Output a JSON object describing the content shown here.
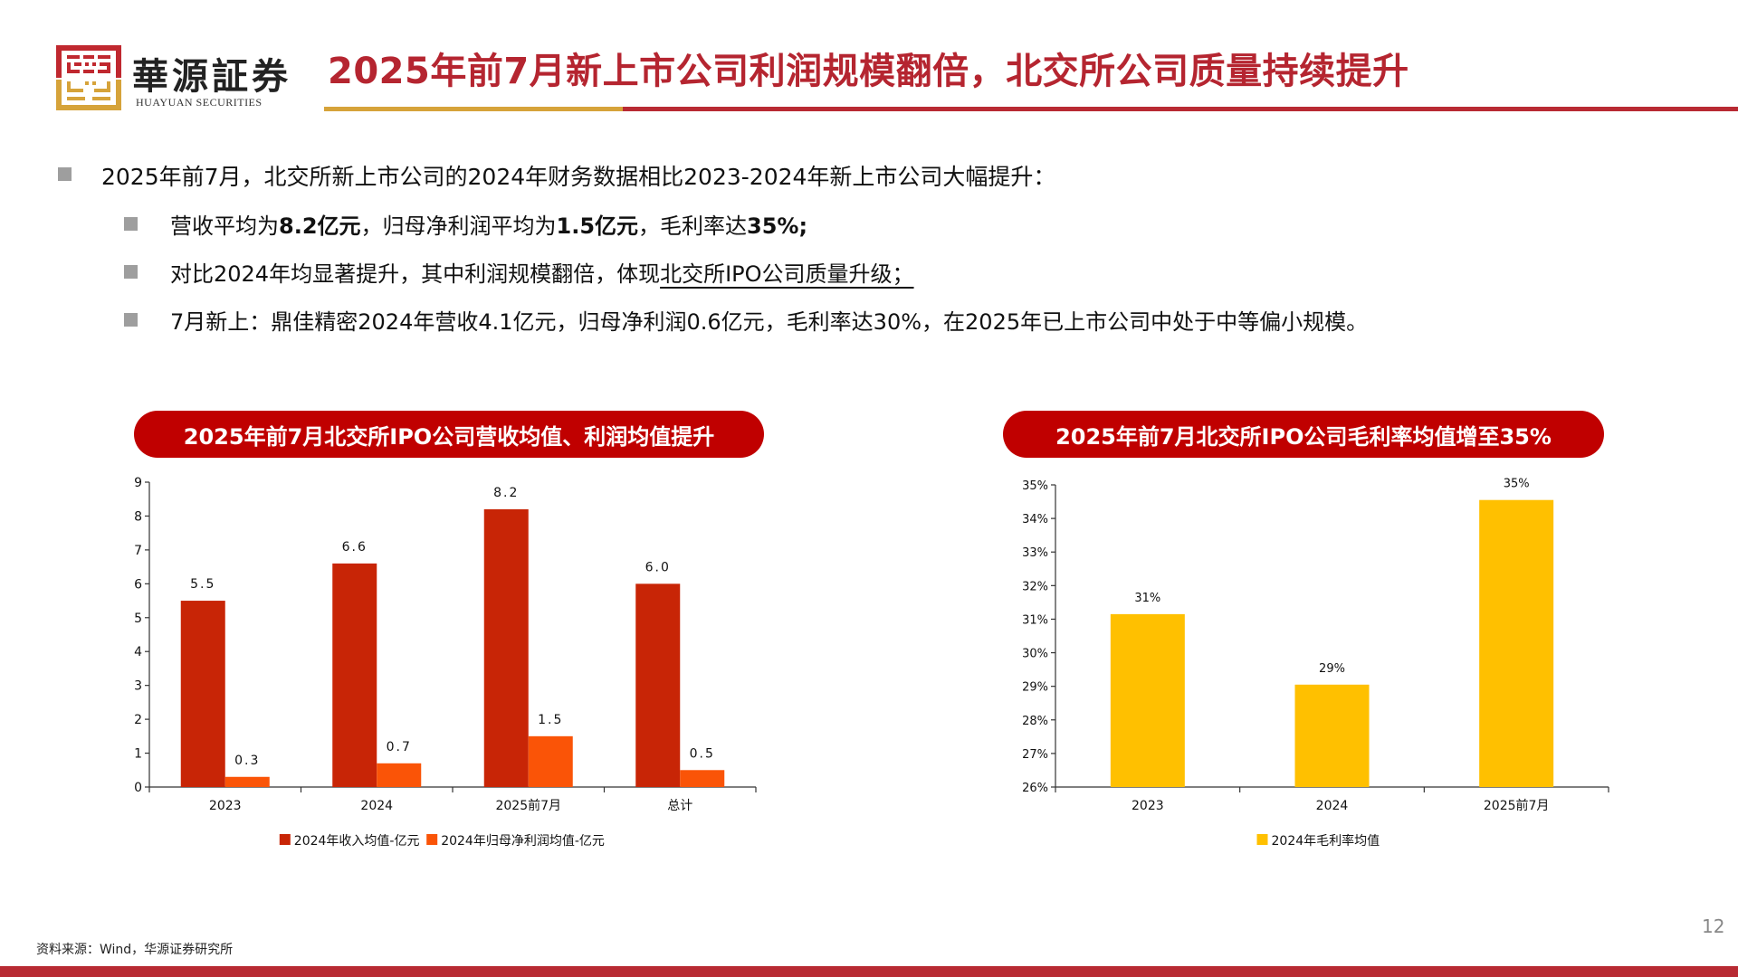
{
  "header": {
    "brand_cn": "華源証券",
    "brand_en": "HUAYUAN SECURITIES",
    "title": "2025年前7月新上市公司利润规模翻倍，北交所公司质量持续提升",
    "colors": {
      "title": "#b52530",
      "rule_gold": "#d6a33a",
      "rule_red": "#b82a33"
    }
  },
  "bullets": {
    "main": "2025年前7月，北交所新上市公司的2024年财务数据相比2023-2024年新上市公司大幅提升：",
    "sub1": {
      "p1": "营收平均为",
      "p2": "8.2亿元",
      "p3": "，归母净利润平均为",
      "p4": "1.5亿元",
      "p5": "，毛利率达",
      "p6": "35%;"
    },
    "sub2": {
      "p1": "对比2024年均显著提升，其中利润规模翻倍，体现",
      "p2": "北交所IPO公司质量升级；"
    },
    "sub3": "7月新上：鼎佳精密2024年营收4.1亿元，归母净利润0.6亿元，毛利率达30%，在2025年已上市公司中处于中等偏小规模。"
  },
  "chart_data": [
    {
      "type": "bar",
      "title": "2025年前7月北交所IPO公司营收均值、利润均值提升",
      "categories": [
        "2023",
        "2024",
        "2025前7月",
        "总计"
      ],
      "series": [
        {
          "name": "2024年收入均值-亿元",
          "color": "#c82506",
          "values": [
            5.5,
            6.6,
            8.2,
            6.0
          ],
          "labels": [
            "5.5",
            "6.6",
            "8.2",
            "6.0"
          ]
        },
        {
          "name": "2024年归母净利润均值-亿元",
          "color": "#fa5407",
          "values": [
            0.3,
            0.7,
            1.5,
            0.5
          ],
          "labels": [
            "0.3",
            "0.7",
            "1.5",
            "0.5"
          ]
        }
      ],
      "yticks": [
        "0",
        "1",
        "2",
        "3",
        "4",
        "5",
        "6",
        "7",
        "8",
        "9"
      ],
      "ylim": [
        0,
        9
      ],
      "xlabel": "",
      "ylabel": "",
      "grid": false,
      "legend_position": "bottom"
    },
    {
      "type": "bar",
      "title": "2025年前7月北交所IPO公司毛利率均值增至35%",
      "categories": [
        "2023",
        "2024",
        "2025前7月"
      ],
      "series": [
        {
          "name": "2024年毛利率均值",
          "color": "#ffc000",
          "values": [
            31.15,
            29.05,
            34.55
          ],
          "labels": [
            "31%",
            "29%",
            "35%"
          ]
        }
      ],
      "yticks": [
        "26%",
        "27%",
        "28%",
        "29%",
        "30%",
        "31%",
        "32%",
        "33%",
        "34%",
        "35%"
      ],
      "ylim": [
        26,
        35
      ],
      "xlabel": "",
      "ylabel": "",
      "grid": false,
      "legend_position": "bottom"
    }
  ],
  "footer": {
    "source": "资料来源：Wind，华源证券研究所",
    "page_number": "12"
  }
}
